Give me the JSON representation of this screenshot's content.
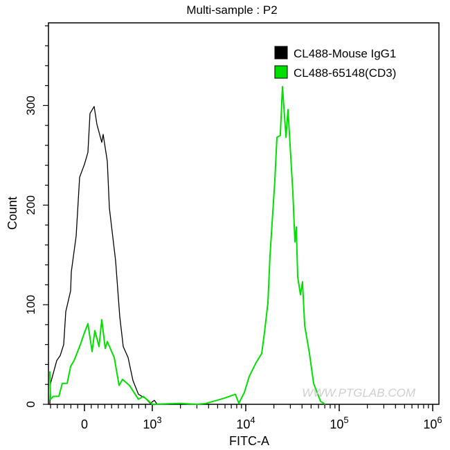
{
  "chart_data": {
    "type": "line",
    "title": "Multi-sample : P2",
    "xlabel": "FITC-A",
    "ylabel": "Count",
    "x_scale": "biexponential",
    "xlim": [
      -530,
      1000000
    ],
    "ylim": [
      0,
      383
    ],
    "x_ticks": [
      {
        "value": 0,
        "label": "0",
        "exp": ""
      },
      {
        "value": 1000,
        "label": "10",
        "exp": "3"
      },
      {
        "value": 10000,
        "label": "10",
        "exp": "4"
      },
      {
        "value": 100000,
        "label": "10",
        "exp": "5"
      },
      {
        "value": 1000000,
        "label": "10",
        "exp": "6"
      }
    ],
    "y_ticks": [
      0,
      100,
      200,
      300
    ],
    "grid": false,
    "legend_position": "top-right",
    "watermark": "WWW.PTGLAB.COM",
    "series": [
      {
        "name": "CL488-Mouse IgG1",
        "color": "#000000",
        "x": [
          -510,
          -500,
          -408,
          -357,
          -306,
          -276,
          -204,
          -194,
          -122,
          -71,
          0,
          51,
          82,
          143,
          184,
          255,
          276,
          337,
          367,
          459,
          520,
          571,
          643,
          714,
          796,
          898,
          969,
          1052,
          1127
        ],
        "y": [
          0,
          21,
          44,
          49,
          60,
          93,
          114,
          133,
          169,
          228,
          241,
          253,
          292,
          299,
          281,
          263,
          271,
          244,
          197,
          144,
          88,
          58,
          47,
          24,
          10,
          6,
          1,
          4,
          0
        ]
      },
      {
        "name": "CL488-65148(CD3)",
        "color": "#00e000",
        "x": [
          -510,
          -500,
          -459,
          -378,
          -327,
          -255,
          -204,
          -153,
          -71,
          0,
          51,
          112,
          153,
          214,
          255,
          306,
          337,
          439,
          510,
          561,
          663,
          796,
          867,
          1000,
          2000,
          3000,
          3786,
          5794,
          7740,
          8430,
          9660,
          10890,
          12910,
          14800,
          15850,
          17260,
          18160,
          20460,
          21540,
          23440,
          24700,
          26920,
          28320,
          29310,
          31910,
          33560,
          34750,
          35940,
          38460,
          40440,
          42660,
          48010,
          53190,
          63100,
          71060
        ],
        "y": [
          33,
          5,
          8,
          8,
          21,
          21,
          38,
          44,
          58,
          72,
          81,
          53,
          74,
          58,
          85,
          56,
          63,
          47,
          19,
          25,
          19,
          5,
          8,
          0,
          1,
          0,
          1,
          6,
          10,
          1,
          12,
          28,
          42,
          51,
          72,
          102,
          149,
          225,
          268,
          270,
          319,
          268,
          296,
          272,
          213,
          163,
          178,
          128,
          110,
          123,
          79,
          51,
          21,
          3,
          0
        ]
      }
    ]
  }
}
